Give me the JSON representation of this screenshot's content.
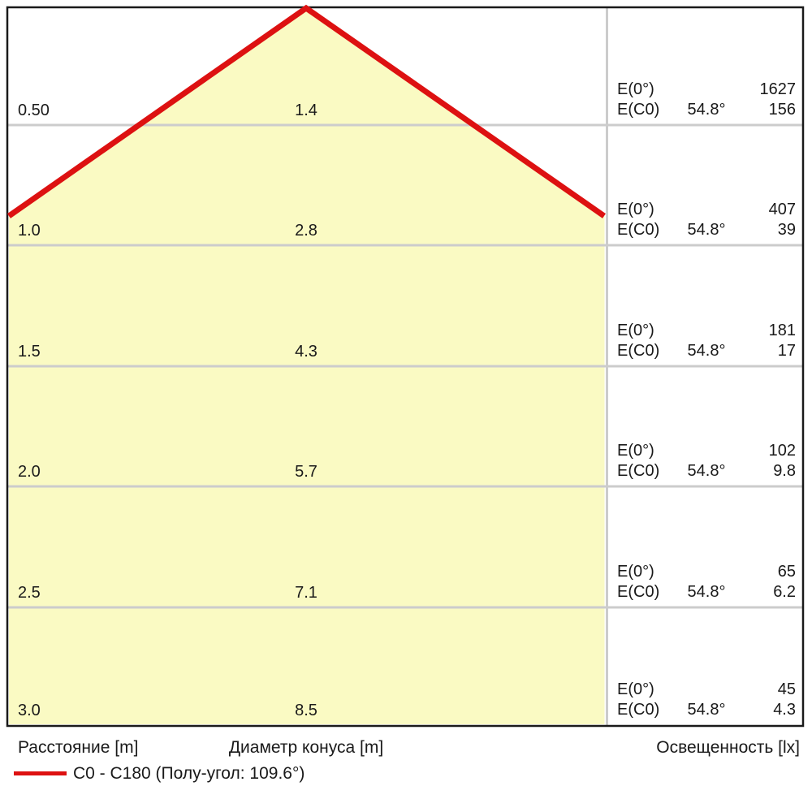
{
  "colors": {
    "cone_fill": "#FAFAC3",
    "beam_red": "#DD1111",
    "grid_gray": "#CCCCCC",
    "border_black": "#1A1A1A"
  },
  "axis": {
    "distance_label": "Расстояние [m]",
    "diameter_label": "Диаметр конуса [m]",
    "illuminance_label": "Освещенность [lx]"
  },
  "legend": {
    "label": "C0 - C180 (Полу-угол: 109.6°)"
  },
  "rows": [
    {
      "distance": "0.50",
      "diameter": "1.4",
      "e0_label": "E(0°)",
      "e0_value": "1627",
      "ec0_label": "E(C0)",
      "angle": "54.8°",
      "ec0_value": "156"
    },
    {
      "distance": "1.0",
      "diameter": "2.8",
      "e0_label": "E(0°)",
      "e0_value": "407",
      "ec0_label": "E(C0)",
      "angle": "54.8°",
      "ec0_value": "39"
    },
    {
      "distance": "1.5",
      "diameter": "4.3",
      "e0_label": "E(0°)",
      "e0_value": "181",
      "ec0_label": "E(C0)",
      "angle": "54.8°",
      "ec0_value": "17"
    },
    {
      "distance": "2.0",
      "diameter": "5.7",
      "e0_label": "E(0°)",
      "e0_value": "102",
      "ec0_label": "E(C0)",
      "angle": "54.8°",
      "ec0_value": "9.8"
    },
    {
      "distance": "2.5",
      "diameter": "7.1",
      "e0_label": "E(0°)",
      "e0_value": "65",
      "ec0_label": "E(C0)",
      "angle": "54.8°",
      "ec0_value": "6.2"
    },
    {
      "distance": "3.0",
      "diameter": "8.5",
      "e0_label": "E(0°)",
      "e0_value": "45",
      "ec0_label": "E(C0)",
      "angle": "54.8°",
      "ec0_value": "4.3"
    }
  ],
  "chart_data": {
    "type": "table",
    "title": "Light cone diagram",
    "columns": [
      "Расстояние [m]",
      "Диаметр конуса [m]",
      "E(0°) [lx]",
      "E(C0) [lx]"
    ],
    "distance_m": [
      0.5,
      1.0,
      1.5,
      2.0,
      2.5,
      3.0
    ],
    "cone_diameter_m": [
      1.4,
      2.8,
      4.3,
      5.7,
      7.1,
      8.5
    ],
    "E0_lx": [
      1627,
      407,
      181,
      102,
      65,
      45
    ],
    "EC0_lx": [
      156,
      39,
      17,
      9.8,
      6.2,
      4.3
    ],
    "C_plane_angle_deg": 54.8,
    "half_angle_deg": 109.6,
    "legend": "C0 - C180 (Полу-угол: 109.6°)",
    "grid": true,
    "legend_position": "bottom-left"
  }
}
